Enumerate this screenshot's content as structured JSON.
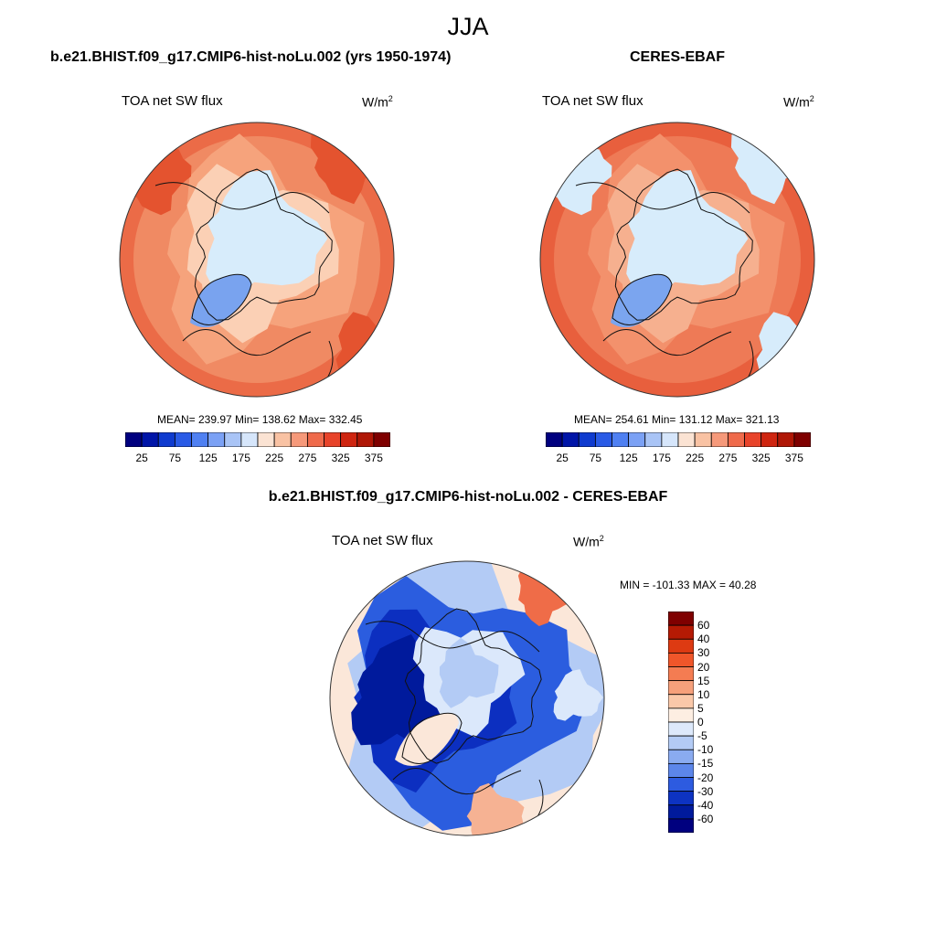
{
  "main_title": "JJA",
  "panels": [
    {
      "title": "b.e21.BHIST.f09_g17.CMIP6-hist-noLu.002 (yrs 1950-1974)",
      "variable": "TOA net SW flux",
      "units": "W/m",
      "units_sup": "2",
      "stats": "MEAN= 239.97  Min= 138.62  Max= 332.45"
    },
    {
      "title": "CERES-EBAF",
      "variable": "TOA net SW flux",
      "units": "W/m",
      "units_sup": "2",
      "stats": "MEAN= 254.61  Min= 131.12  Max= 321.13"
    },
    {
      "title": "b.e21.BHIST.f09_g17.CMIP6-hist-noLu.002 - CERES-EBAF",
      "variable": "TOA net SW flux",
      "units": "W/m",
      "units_sup": "2",
      "stats": "MIN = -101.33 MAX =  40.28"
    }
  ],
  "colorbar_abs": {
    "labels": [
      "25",
      "75",
      "125",
      "175",
      "225",
      "275",
      "325",
      "375"
    ],
    "colors": [
      "#00007f",
      "#0015a8",
      "#0f3bcf",
      "#2a5be6",
      "#4f80f2",
      "#7ba1f5",
      "#a9c4f6",
      "#d6e6fb",
      "#fbe3d3",
      "#f9c2a3",
      "#f6997a",
      "#ef6a4b",
      "#e8432a",
      "#cf2510",
      "#b01706",
      "#7f0000"
    ]
  },
  "colorbar_diff": {
    "labels": [
      "60",
      "40",
      "30",
      "20",
      "15",
      "10",
      "5",
      "0",
      "-5",
      "-10",
      "-15",
      "-20",
      "-30",
      "-40",
      "-60"
    ],
    "colors": [
      "#7f0000",
      "#b51a04",
      "#dd3a12",
      "#f0562a",
      "#f47c52",
      "#f6a07b",
      "#fac8a9",
      "#fdeee2",
      "#dde9fb",
      "#b3cbf5",
      "#8aabf0",
      "#5c86ea",
      "#2d5be0",
      "#0d33c2",
      "#001a9c",
      "#00007f"
    ]
  },
  "map_colors": {
    "left": [
      "#fbd0b5",
      "#f6a37c",
      "#f08a63",
      "#eb6b47",
      "#e4532f",
      "#d7ecfb",
      "#a9c3f2",
      "#79a3ef"
    ],
    "right": [
      "#f6b08f",
      "#f3916c",
      "#ee7a56",
      "#e85f3d",
      "#d7ecfb",
      "#7ba5ef"
    ],
    "diff": [
      "#0c2fc0",
      "#2b5ddf",
      "#5a84ea",
      "#b3cbf5",
      "#dbe8fb",
      "#fbe7d9",
      "#f6b293",
      "#ef6c48",
      "#f4f4f4",
      "#001a9c"
    ]
  }
}
